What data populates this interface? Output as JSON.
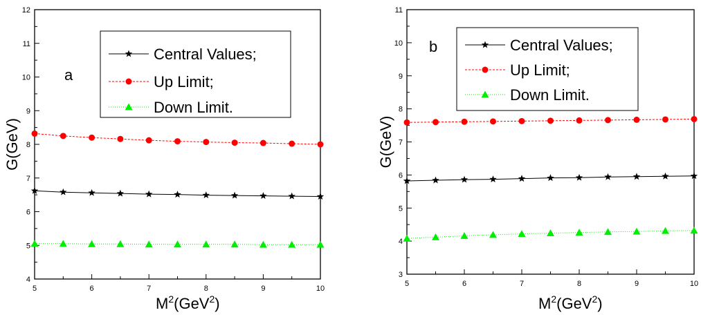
{
  "chart_data": [
    {
      "type": "line",
      "panel_label": "a",
      "xlabel_base": "M",
      "xlabel_sup1": "2",
      "xlabel_mid": "(GeV",
      "xlabel_sup2": "2",
      "xlabel_end": ")",
      "ylabel": "G(GeV)",
      "xlim": [
        5,
        10
      ],
      "ylim": [
        4,
        12
      ],
      "xticks": [
        "5",
        "6",
        "7",
        "8",
        "9",
        "10"
      ],
      "yticks": [
        "4",
        "5",
        "6",
        "7",
        "8",
        "9",
        "10",
        "11",
        "12"
      ],
      "x": [
        5,
        5.5,
        6,
        6.5,
        7,
        7.5,
        8,
        8.5,
        9,
        9.5,
        10
      ],
      "legend_position": "top-right",
      "series": [
        {
          "name": "Central Values;",
          "marker": "star",
          "color": "#000000",
          "dash": "none",
          "values": [
            6.62,
            6.58,
            6.56,
            6.54,
            6.52,
            6.51,
            6.49,
            6.48,
            6.47,
            6.46,
            6.45
          ]
        },
        {
          "name": "Up Limit;",
          "marker": "circle",
          "color": "#ff0000",
          "dash": "3,2",
          "values": [
            8.32,
            8.25,
            8.2,
            8.16,
            8.12,
            8.09,
            8.07,
            8.05,
            8.04,
            8.02,
            8.0
          ]
        },
        {
          "name": "Down Limit.",
          "marker": "triangle",
          "color": "#00ee00",
          "dash": "1,2",
          "values": [
            5.05,
            5.05,
            5.04,
            5.04,
            5.03,
            5.03,
            5.03,
            5.03,
            5.02,
            5.02,
            5.02
          ]
        }
      ]
    },
    {
      "type": "line",
      "panel_label": "b",
      "xlabel_base": "M",
      "xlabel_sup1": "2",
      "xlabel_mid": "(GeV",
      "xlabel_sup2": "2",
      "xlabel_end": ")",
      "ylabel": "G(GeV)",
      "xlim": [
        5,
        10
      ],
      "ylim": [
        3,
        11
      ],
      "xticks": [
        "5",
        "6",
        "7",
        "8",
        "9",
        "10"
      ],
      "yticks": [
        "3",
        "4",
        "5",
        "6",
        "7",
        "8",
        "9",
        "10",
        "11"
      ],
      "x": [
        5,
        5.5,
        6,
        6.5,
        7,
        7.5,
        8,
        8.5,
        9,
        9.5,
        10
      ],
      "legend_position": "top-right",
      "series": [
        {
          "name": "Central Values;",
          "marker": "star",
          "color": "#000000",
          "dash": "none",
          "values": [
            5.82,
            5.84,
            5.86,
            5.87,
            5.89,
            5.91,
            5.92,
            5.94,
            5.95,
            5.96,
            5.97
          ]
        },
        {
          "name": "Up Limit;",
          "marker": "circle",
          "color": "#ff0000",
          "dash": "3,2",
          "values": [
            7.59,
            7.6,
            7.61,
            7.62,
            7.63,
            7.64,
            7.65,
            7.66,
            7.67,
            7.68,
            7.69
          ]
        },
        {
          "name": "Down Limit.",
          "marker": "triangle",
          "color": "#00ee00",
          "dash": "1,2",
          "values": [
            4.08,
            4.12,
            4.16,
            4.19,
            4.22,
            4.24,
            4.26,
            4.28,
            4.29,
            4.31,
            4.32
          ]
        }
      ]
    }
  ]
}
